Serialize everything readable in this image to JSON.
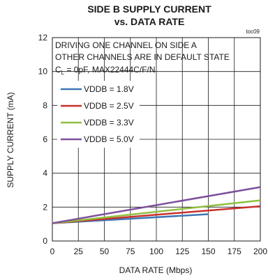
{
  "chart_data": {
    "type": "line",
    "title": "SIDE B SUPPLY CURRENT",
    "subtitle": "vs. DATA RATE",
    "figure_tag": "toc09",
    "xlabel": "DATA RATE (Mbps)",
    "ylabel": "SUPPLY CURRENT (mA)",
    "xlim": [
      0,
      200
    ],
    "ylim": [
      0,
      12
    ],
    "xticks": [
      "0",
      "25",
      "50",
      "75",
      "100",
      "125",
      "150",
      "175",
      "200"
    ],
    "yticks": [
      "0",
      "2",
      "4",
      "6",
      "8",
      "10",
      "12"
    ],
    "grid": true,
    "legend_position": "top-left",
    "annotations": [
      "DRIVING ONE CHANNEL  ON SIDE A",
      "OTHER CHANNELS ARE IN DEFAULT STATE"
    ],
    "condition_prefix": "C",
    "condition_subscript": "L",
    "condition_rest": " = 0pF, MAX22444C/F/N",
    "series": [
      {
        "name": "VDDB = 1.8V",
        "color": "#3f76b5",
        "x": [
          0,
          150
        ],
        "y": [
          1.05,
          1.58
        ]
      },
      {
        "name": "VDDB = 2.5V",
        "color": "#c9312b",
        "x": [
          0,
          200
        ],
        "y": [
          1.05,
          2.05
        ]
      },
      {
        "name": "VDDB = 3.3V",
        "color": "#8fbf3f",
        "x": [
          0,
          200
        ],
        "y": [
          1.05,
          2.4
        ]
      },
      {
        "name": "VDDB = 5.0V",
        "color": "#7d4f9d",
        "x": [
          0,
          200
        ],
        "y": [
          1.05,
          3.18
        ]
      }
    ]
  }
}
